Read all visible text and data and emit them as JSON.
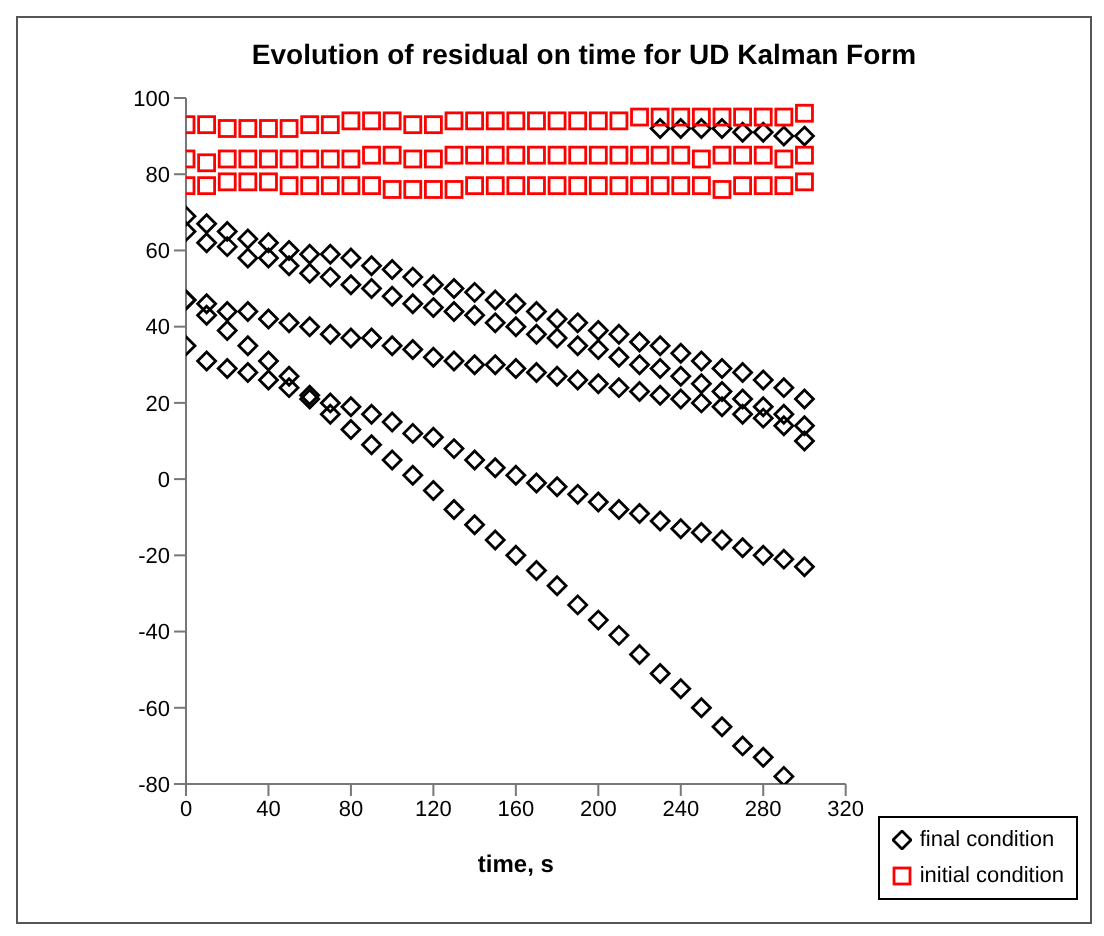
{
  "chart_data": {
    "type": "scatter",
    "title": "Evolution of residual on time for UD Kalman Form",
    "xlabel": "time, s",
    "xlim": [
      0,
      320
    ],
    "xticks": [
      0,
      40,
      80,
      120,
      160,
      200,
      240,
      280,
      320
    ],
    "ylim": [
      -80,
      100
    ],
    "yticks": [
      -80,
      -60,
      -40,
      -20,
      0,
      20,
      40,
      60,
      80,
      100
    ],
    "legend": "bottom right",
    "grid": false,
    "series": [
      {
        "name": "final condition",
        "color": "#000000",
        "marker": "diamond",
        "x": [
          0,
          10,
          20,
          30,
          40,
          50,
          60,
          70,
          80,
          90,
          100,
          110,
          120,
          130,
          140,
          150,
          160,
          170,
          180,
          190,
          200,
          210,
          220,
          230,
          240,
          250,
          260,
          270,
          280,
          290,
          300,
          0,
          10,
          20,
          30,
          40,
          50,
          60,
          70,
          80,
          90,
          100,
          110,
          120,
          130,
          140,
          150,
          160,
          170,
          180,
          190,
          200,
          210,
          220,
          230,
          240,
          250,
          260,
          270,
          280,
          290,
          300,
          0,
          10,
          20,
          30,
          40,
          50,
          60,
          70,
          80,
          90,
          100,
          110,
          120,
          130,
          140,
          150,
          160,
          170,
          180,
          190,
          200,
          210,
          220,
          230,
          240,
          250,
          260,
          270,
          280,
          290,
          300,
          0,
          10,
          20,
          30,
          40,
          50,
          60,
          70,
          80,
          90,
          100,
          110,
          120,
          130,
          140,
          150,
          160,
          170,
          180,
          190,
          200,
          210,
          220,
          230,
          240,
          250,
          260,
          270,
          280,
          290,
          300,
          0,
          10,
          20,
          30,
          40,
          50,
          60,
          70,
          80,
          90,
          100,
          110,
          120,
          130,
          140,
          150,
          160,
          170,
          180,
          190,
          200,
          210,
          220,
          230,
          240,
          250,
          260,
          270,
          280,
          290,
          230,
          240,
          250,
          260,
          270,
          280,
          290,
          300
        ],
        "values": [
          69,
          67,
          65,
          63,
          62,
          60,
          59,
          59,
          58,
          56,
          55,
          53,
          51,
          50,
          49,
          47,
          46,
          44,
          42,
          41,
          39,
          38,
          36,
          35,
          33,
          31,
          29,
          28,
          26,
          24,
          21,
          65,
          62,
          61,
          58,
          58,
          56,
          54,
          53,
          51,
          50,
          48,
          46,
          45,
          44,
          43,
          41,
          40,
          38,
          37,
          35,
          34,
          32,
          30,
          29,
          27,
          25,
          23,
          21,
          19,
          17,
          14,
          47,
          46,
          44,
          44,
          42,
          41,
          40,
          38,
          37,
          37,
          35,
          34,
          32,
          31,
          30,
          30,
          29,
          28,
          27,
          26,
          25,
          24,
          23,
          22,
          21,
          20,
          19,
          17,
          16,
          14,
          10,
          47,
          43,
          39,
          35,
          31,
          27,
          22,
          20,
          19,
          17,
          15,
          12,
          11,
          8,
          5,
          3,
          1,
          -1,
          -2,
          -4,
          -6,
          -8,
          -9,
          -11,
          -13,
          -14,
          -16,
          -18,
          -20,
          -21,
          -23,
          35,
          31,
          29,
          28,
          26,
          24,
          21,
          17,
          13,
          9,
          5,
          1,
          -3,
          -8,
          -12,
          -16,
          -20,
          -24,
          -28,
          -33,
          -37,
          -41,
          -46,
          -51,
          -55,
          -60,
          -65,
          -70,
          -73,
          -78,
          92,
          92,
          92,
          92,
          91,
          91,
          90,
          90
        ]
      },
      {
        "name": "initial condition",
        "color": "#ff0000",
        "marker": "square",
        "x": [
          0,
          10,
          20,
          30,
          40,
          50,
          60,
          70,
          80,
          90,
          100,
          110,
          120,
          130,
          140,
          150,
          160,
          170,
          180,
          190,
          200,
          210,
          220,
          230,
          240,
          250,
          260,
          270,
          280,
          290,
          300,
          0,
          10,
          20,
          30,
          40,
          50,
          60,
          70,
          80,
          90,
          100,
          110,
          120,
          130,
          140,
          150,
          160,
          170,
          180,
          190,
          200,
          210,
          220,
          230,
          240,
          250,
          260,
          270,
          280,
          290,
          300,
          0,
          10,
          20,
          30,
          40,
          50,
          60,
          70,
          80,
          90,
          100,
          110,
          120,
          130,
          140,
          150,
          160,
          170,
          180,
          190,
          200,
          210,
          220,
          230,
          240,
          250,
          260,
          270,
          280,
          290,
          300
        ],
        "values": [
          93,
          93,
          92,
          92,
          92,
          92,
          93,
          93,
          94,
          94,
          94,
          93,
          93,
          94,
          94,
          94,
          94,
          94,
          94,
          94,
          94,
          94,
          95,
          95,
          95,
          95,
          95,
          95,
          95,
          95,
          96,
          84,
          83,
          84,
          84,
          84,
          84,
          84,
          84,
          84,
          85,
          85,
          84,
          84,
          85,
          85,
          85,
          85,
          85,
          85,
          85,
          85,
          85,
          85,
          85,
          85,
          84,
          85,
          85,
          85,
          84,
          85,
          77,
          77,
          78,
          78,
          78,
          77,
          77,
          77,
          77,
          77,
          76,
          76,
          76,
          76,
          77,
          77,
          77,
          77,
          77,
          77,
          77,
          77,
          77,
          77,
          77,
          77,
          76,
          77,
          77,
          77,
          78
        ]
      }
    ]
  }
}
